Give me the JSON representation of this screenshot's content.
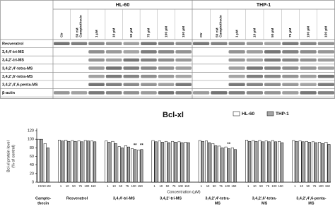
{
  "blot": {
    "groups": [
      {
        "name": "HL-60",
        "columns": [
          [
            "Ctr"
          ],
          [
            "50 nM",
            "Camptothecin"
          ],
          [
            "1 µM"
          ],
          [
            "10 µM"
          ],
          [
            "50 µM"
          ],
          [
            "75 µM"
          ],
          [
            "100 µM"
          ],
          [
            "150 µM"
          ]
        ]
      },
      {
        "name": "THP-1",
        "columns": [
          [
            "Ctr"
          ],
          [
            "50 nM",
            "Camptothecin"
          ],
          [
            "1 µM"
          ],
          [
            "10 µM"
          ],
          [
            "50 µM"
          ],
          [
            "75 µM"
          ],
          [
            "100 µM"
          ],
          [
            "150 µM"
          ]
        ]
      }
    ],
    "rows": [
      "Resveratrol",
      "3,4,4'-tri-MS",
      "3,4,2'-tri-MS",
      "3,4,2',4'-tetra-MS",
      "3,4,2',6'-tetra-MS",
      "3,4,2',4',6-penta-MS",
      "β-actin"
    ]
  },
  "chart_data": {
    "type": "bar",
    "title": "Bcl-xl",
    "y_label": [
      "Bcl-xl protein level",
      "(% of control)"
    ],
    "x_label": "Concentration (µM)",
    "categories": [
      "Ctr",
      "50 nM",
      "1",
      "10",
      "50",
      "75",
      "100",
      "150",
      "1",
      "10",
      "50",
      "75",
      "100",
      "150",
      "1",
      "10",
      "50",
      "75",
      "100",
      "150",
      "1",
      "10",
      "50",
      "75",
      "100",
      "150",
      "1",
      "10",
      "50",
      "75",
      "100",
      "150",
      "1",
      "10",
      "50",
      "75",
      "100",
      "150"
    ],
    "group_labels": [
      [
        "Campto-",
        "thecin"
      ],
      [
        "Resveratrol"
      ],
      [
        "3,4,4'-tri-MS"
      ],
      [
        "3,4,2'-tri-MS"
      ],
      [
        "3,4,2',4'-tetra-",
        "MS"
      ],
      [
        "3,4,2',6'-tetra-",
        "MS"
      ],
      [
        "3,4,2',4',6-penta-",
        "MS"
      ]
    ],
    "series": [
      {
        "name": "HL-60",
        "color": "#ffffff",
        "values": [
          100,
          90,
          98,
          98,
          97,
          96,
          97,
          96,
          96,
          95,
          83,
          85,
          78,
          75,
          97,
          96,
          95,
          95,
          94,
          93,
          97,
          96,
          90,
          84,
          82,
          80,
          98,
          97,
          97,
          96,
          97,
          95,
          97,
          96,
          95,
          94,
          93,
          93
        ]
      },
      {
        "name": "THP-1",
        "color": "#a6a6a6",
        "values": [
          100,
          80,
          96,
          95,
          95,
          94,
          96,
          94,
          93,
          90,
          80,
          82,
          76,
          76,
          94,
          93,
          92,
          93,
          92,
          92,
          95,
          92,
          85,
          80,
          78,
          76,
          95,
          95,
          94,
          94,
          94,
          92,
          95,
          94,
          93,
          92,
          90,
          88
        ],
        "significance": [
          null,
          null,
          null,
          null,
          null,
          null,
          null,
          null,
          null,
          null,
          null,
          null,
          "**",
          "**",
          null,
          null,
          null,
          null,
          null,
          null,
          null,
          null,
          null,
          null,
          "**",
          null,
          null,
          null,
          null,
          null,
          null,
          null,
          null,
          null,
          null,
          null,
          null,
          null
        ]
      }
    ],
    "ylim": [
      0,
      120
    ],
    "yticks": [
      0,
      20,
      40,
      60,
      80,
      100,
      120
    ],
    "legend": "top-right"
  }
}
